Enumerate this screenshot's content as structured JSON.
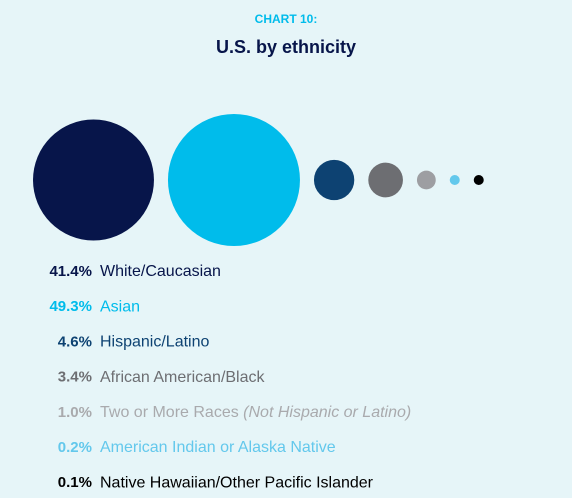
{
  "chart_data": {
    "type": "bubble",
    "label": "CHART 10:",
    "title": "U.S. by ethnicity",
    "categories": [
      "White/Caucasian",
      "Asian",
      "Hispanic/Latino",
      "African American/Black",
      "Two or More Races (Not Hispanic or Latino)",
      "American Indian or Alaska Native",
      "Native Hawaiian/Other Pacific Islander"
    ],
    "values": [
      41.4,
      49.3,
      4.6,
      3.4,
      1.0,
      0.2,
      0.1
    ],
    "value_labels": [
      "41.4%",
      "49.3%",
      "4.6%",
      "3.4%",
      "1.0%",
      "0.2%",
      "0.1%"
    ],
    "colors": [
      "#07154a",
      "#00bceb",
      "#0d4272",
      "#6d6e72",
      "#9d9ea2",
      "#63c8ec",
      "#000000"
    ]
  }
}
